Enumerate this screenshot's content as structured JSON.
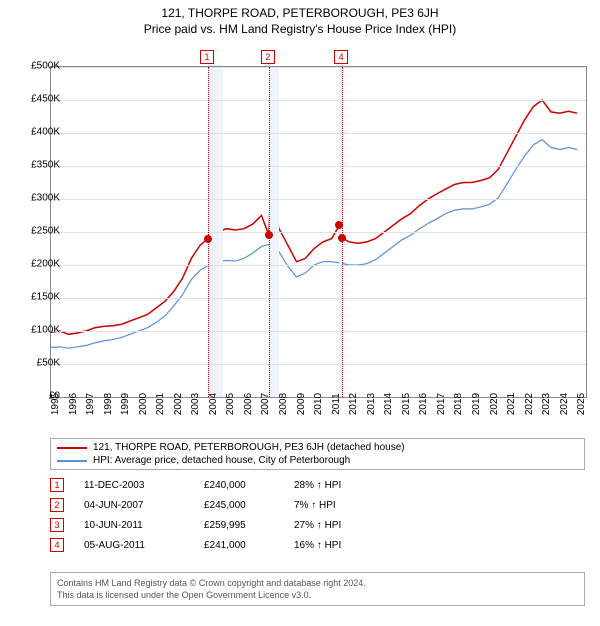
{
  "title": "121, THORPE ROAD, PETERBOROUGH, PE3 6JH",
  "subtitle": "Price paid vs. HM Land Registry's House Price Index (HPI)",
  "chart": {
    "type": "line",
    "background_color": "#ffffff",
    "grid_color": "#e0e0e0",
    "xlim": [
      1995,
      2025.5
    ],
    "ylim": [
      0,
      500000
    ],
    "ytick_step": 50000,
    "ylabels": [
      "£0",
      "£50K",
      "£100K",
      "£150K",
      "£200K",
      "£250K",
      "£300K",
      "£350K",
      "£400K",
      "£450K",
      "£500K"
    ],
    "xlabels": [
      "1995",
      "1996",
      "1997",
      "1998",
      "1999",
      "2000",
      "2001",
      "2002",
      "2003",
      "2004",
      "2005",
      "2006",
      "2007",
      "2008",
      "2009",
      "2010",
      "2011",
      "2012",
      "2013",
      "2014",
      "2015",
      "2016",
      "2017",
      "2018",
      "2019",
      "2020",
      "2021",
      "2022",
      "2023",
      "2024",
      "2025"
    ],
    "shaded_ranges": [
      {
        "x0": 2003.95,
        "x1": 2004.8,
        "color": "#f0f3fa"
      },
      {
        "x0": 2007.4,
        "x1": 2008.0,
        "color": "#f0f3fa"
      },
      {
        "x0": 2011.4,
        "x1": 2011.6,
        "color": "#f0f3fa"
      }
    ],
    "event_lines": [
      {
        "x": 2003.95,
        "label": "1",
        "box_color": "#cc0000"
      },
      {
        "x": 2007.42,
        "label": "2",
        "box_color": "#cc0000"
      },
      {
        "x": 2011.6,
        "label": "4",
        "box_color": "#cc0000"
      }
    ],
    "transaction_points": [
      {
        "x": 2003.95,
        "y": 240000,
        "color": "#cc0000"
      },
      {
        "x": 2007.42,
        "y": 245000,
        "color": "#cc0000"
      },
      {
        "x": 2011.44,
        "y": 259995,
        "color": "#cc0000"
      },
      {
        "x": 2011.6,
        "y": 241000,
        "color": "#cc0000"
      }
    ],
    "series": [
      {
        "name": "property",
        "color": "#cc0000",
        "line_width": 1.5,
        "data": [
          [
            1995,
            98000
          ],
          [
            1995.5,
            100000
          ],
          [
            1996,
            95000
          ],
          [
            1996.5,
            97000
          ],
          [
            1997,
            100000
          ],
          [
            1997.5,
            105000
          ],
          [
            1998,
            107000
          ],
          [
            1998.5,
            108000
          ],
          [
            1999,
            110000
          ],
          [
            1999.5,
            115000
          ],
          [
            2000,
            120000
          ],
          [
            2000.5,
            125000
          ],
          [
            2001,
            135000
          ],
          [
            2001.5,
            145000
          ],
          [
            2002,
            160000
          ],
          [
            2002.5,
            180000
          ],
          [
            2003,
            210000
          ],
          [
            2003.5,
            230000
          ],
          [
            2003.95,
            240000
          ],
          [
            2004.5,
            250000
          ],
          [
            2005,
            255000
          ],
          [
            2005.5,
            253000
          ],
          [
            2006,
            255000
          ],
          [
            2006.5,
            262000
          ],
          [
            2007,
            275000
          ],
          [
            2007.42,
            245000
          ],
          [
            2007.5,
            298000
          ],
          [
            2008,
            255000
          ],
          [
            2008.5,
            230000
          ],
          [
            2009,
            205000
          ],
          [
            2009.5,
            210000
          ],
          [
            2010,
            225000
          ],
          [
            2010.5,
            235000
          ],
          [
            2011,
            240000
          ],
          [
            2011.44,
            259995
          ],
          [
            2011.6,
            241000
          ],
          [
            2012,
            235000
          ],
          [
            2012.5,
            233000
          ],
          [
            2013,
            235000
          ],
          [
            2013.5,
            240000
          ],
          [
            2014,
            250000
          ],
          [
            2014.5,
            260000
          ],
          [
            2015,
            270000
          ],
          [
            2015.5,
            278000
          ],
          [
            2016,
            290000
          ],
          [
            2016.5,
            300000
          ],
          [
            2017,
            308000
          ],
          [
            2017.5,
            315000
          ],
          [
            2018,
            322000
          ],
          [
            2018.5,
            325000
          ],
          [
            2019,
            325000
          ],
          [
            2019.5,
            328000
          ],
          [
            2020,
            332000
          ],
          [
            2020.5,
            345000
          ],
          [
            2021,
            370000
          ],
          [
            2021.5,
            395000
          ],
          [
            2022,
            420000
          ],
          [
            2022.5,
            440000
          ],
          [
            2023,
            450000
          ],
          [
            2023.5,
            432000
          ],
          [
            2024,
            430000
          ],
          [
            2024.5,
            433000
          ],
          [
            2025,
            430000
          ]
        ]
      },
      {
        "name": "hpi",
        "color": "#5b8fd6",
        "line_width": 1.2,
        "data": [
          [
            1995,
            75000
          ],
          [
            1995.5,
            76000
          ],
          [
            1996,
            74000
          ],
          [
            1996.5,
            76000
          ],
          [
            1997,
            78000
          ],
          [
            1997.5,
            82000
          ],
          [
            1998,
            85000
          ],
          [
            1998.5,
            87000
          ],
          [
            1999,
            90000
          ],
          [
            1999.5,
            95000
          ],
          [
            2000,
            100000
          ],
          [
            2000.5,
            105000
          ],
          [
            2001,
            113000
          ],
          [
            2001.5,
            123000
          ],
          [
            2002,
            138000
          ],
          [
            2002.5,
            155000
          ],
          [
            2003,
            178000
          ],
          [
            2003.5,
            192000
          ],
          [
            2004,
            200000
          ],
          [
            2004.5,
            205000
          ],
          [
            2005,
            207000
          ],
          [
            2005.5,
            206000
          ],
          [
            2006,
            210000
          ],
          [
            2006.5,
            218000
          ],
          [
            2007,
            228000
          ],
          [
            2007.5,
            232000
          ],
          [
            2008,
            220000
          ],
          [
            2008.5,
            198000
          ],
          [
            2009,
            182000
          ],
          [
            2009.5,
            188000
          ],
          [
            2010,
            200000
          ],
          [
            2010.5,
            205000
          ],
          [
            2011,
            205000
          ],
          [
            2011.5,
            203000
          ],
          [
            2012,
            200000
          ],
          [
            2012.5,
            200000
          ],
          [
            2013,
            202000
          ],
          [
            2013.5,
            208000
          ],
          [
            2014,
            218000
          ],
          [
            2014.5,
            228000
          ],
          [
            2015,
            238000
          ],
          [
            2015.5,
            245000
          ],
          [
            2016,
            255000
          ],
          [
            2016.5,
            263000
          ],
          [
            2017,
            270000
          ],
          [
            2017.5,
            278000
          ],
          [
            2018,
            283000
          ],
          [
            2018.5,
            285000
          ],
          [
            2019,
            285000
          ],
          [
            2019.5,
            288000
          ],
          [
            2020,
            292000
          ],
          [
            2020.5,
            302000
          ],
          [
            2021,
            323000
          ],
          [
            2021.5,
            345000
          ],
          [
            2022,
            365000
          ],
          [
            2022.5,
            382000
          ],
          [
            2023,
            390000
          ],
          [
            2023.5,
            378000
          ],
          [
            2024,
            375000
          ],
          [
            2024.5,
            378000
          ],
          [
            2025,
            375000
          ]
        ]
      }
    ]
  },
  "legend": {
    "items": [
      {
        "color": "#cc0000",
        "label": "121, THORPE ROAD, PETERBOROUGH, PE3 6JH (detached house)"
      },
      {
        "color": "#5b8fd6",
        "label": "HPI: Average price, detached house, City of Peterborough"
      }
    ]
  },
  "transactions": [
    {
      "n": "1",
      "color": "#cc0000",
      "date": "11-DEC-2003",
      "price": "£240,000",
      "pct": "28% ↑ HPI"
    },
    {
      "n": "2",
      "color": "#cc0000",
      "date": "04-JUN-2007",
      "price": "£245,000",
      "pct": "7% ↑ HPI"
    },
    {
      "n": "3",
      "color": "#cc0000",
      "date": "10-JUN-2011",
      "price": "£259,995",
      "pct": "27% ↑ HPI"
    },
    {
      "n": "4",
      "color": "#cc0000",
      "date": "05-AUG-2011",
      "price": "£241,000",
      "pct": "16% ↑ HPI"
    }
  ],
  "footer_line1": "Contains HM Land Registry data © Crown copyright and database right 2024.",
  "footer_line2": "This data is licensed under the Open Government Licence v3.0."
}
